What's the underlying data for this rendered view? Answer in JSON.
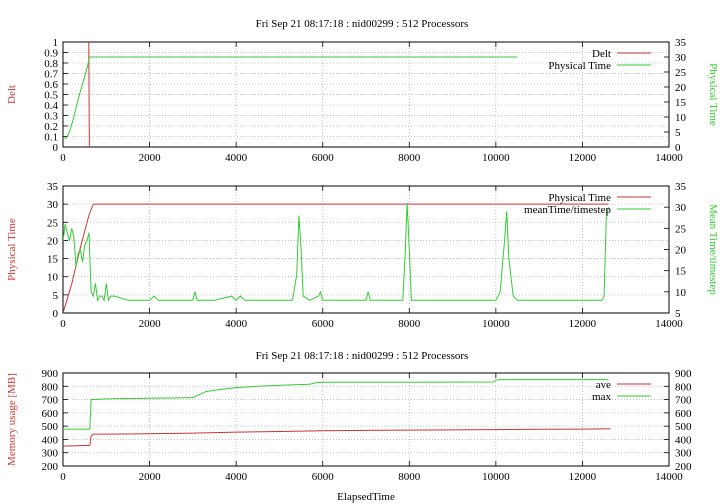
{
  "figure": {
    "title": "Fri Sep 21 08:17:18 : nid00299 : 512 Processors",
    "colors": {
      "red": "#cc3333",
      "green": "#33cc33",
      "grid": "#b8b8b8",
      "axis": "#000000"
    }
  },
  "chart_data": [
    {
      "type": "line",
      "title": "Fri Sep 21 08:17:18 : nid00299 : 512 Processors",
      "xlabel": "",
      "ylabel": "Delt",
      "y2label": "Physical Time",
      "xlim": [
        0,
        14000
      ],
      "ylim": [
        0,
        1
      ],
      "y2lim": [
        0,
        35
      ],
      "xticks": [
        0,
        2000,
        4000,
        6000,
        8000,
        10000,
        12000,
        14000
      ],
      "yticks": [
        0,
        0.1,
        0.2,
        0.3,
        0.4,
        0.5,
        0.6,
        0.7,
        0.8,
        0.9,
        1
      ],
      "y2ticks": [
        0,
        5,
        10,
        15,
        20,
        25,
        30,
        35
      ],
      "grid": true,
      "legend": "top-right",
      "series": [
        {
          "name": "Delt",
          "axis": "y",
          "color": "#cc3333",
          "x": [
            595,
            600,
            605,
            610
          ],
          "y": [
            1.0,
            0.6,
            0.2,
            0.0
          ]
        },
        {
          "name": "Physical Time",
          "axis": "y2",
          "color": "#33cc33",
          "x": [
            0,
            80,
            150,
            250,
            350,
            450,
            550,
            620,
            700,
            1000,
            2000,
            4000,
            6000,
            8000,
            10000,
            10500
          ],
          "y": [
            3,
            3,
            5,
            10,
            16,
            21,
            26,
            30,
            30,
            30,
            30,
            30,
            30,
            30,
            30,
            30
          ]
        }
      ]
    },
    {
      "type": "line",
      "title": "",
      "xlabel": "",
      "ylabel": "Physical Time",
      "y2label": "Mean Time/timestep",
      "xlim": [
        0,
        14000
      ],
      "ylim": [
        0,
        35
      ],
      "y2lim": [
        5,
        35
      ],
      "xticks": [
        0,
        2000,
        4000,
        6000,
        8000,
        10000,
        12000,
        14000
      ],
      "yticks": [
        0,
        5,
        10,
        15,
        20,
        25,
        30,
        35
      ],
      "y2ticks": [
        5,
        10,
        15,
        20,
        25,
        30,
        35
      ],
      "grid": true,
      "legend": "top-right",
      "series": [
        {
          "name": "Physical Time",
          "axis": "y",
          "color": "#cc3333",
          "x": [
            0,
            200,
            400,
            600,
            700,
            1000,
            2000,
            4000,
            6000,
            8000,
            10000,
            12000,
            12600
          ],
          "y": [
            0,
            8,
            18,
            27,
            30,
            30,
            30,
            30,
            30,
            30,
            30,
            30,
            30
          ]
        },
        {
          "name": "meanTime/timestep",
          "axis": "y2",
          "color": "#33cc33",
          "x": [
            0,
            50,
            100,
            150,
            200,
            250,
            300,
            350,
            400,
            450,
            500,
            550,
            600,
            650,
            700,
            750,
            800,
            850,
            900,
            950,
            1000,
            1050,
            1100,
            1200,
            1500,
            2000,
            2100,
            2200,
            2500,
            3000,
            3050,
            3100,
            3200,
            3500,
            3900,
            4000,
            4100,
            4200,
            4500,
            5000,
            5300,
            5400,
            5450,
            5500,
            5550,
            5700,
            5900,
            5950,
            6000,
            6500,
            7000,
            7050,
            7100,
            7500,
            7800,
            7850,
            7900,
            7950,
            8000,
            8050,
            8500,
            9000,
            9500,
            10000,
            10100,
            10200,
            10250,
            10300,
            10400,
            10500,
            11000,
            11500,
            11800,
            12000,
            12300,
            12450,
            12500,
            12550,
            12600
          ],
          "y": [
            22,
            26,
            24,
            22,
            25,
            23,
            16,
            19,
            20,
            17,
            21,
            22,
            24,
            10,
            9,
            12,
            8,
            9,
            9,
            8,
            12,
            8,
            9,
            9,
            8,
            8,
            9,
            8,
            8,
            8,
            10,
            8,
            8,
            8,
            9,
            8,
            9,
            8,
            8,
            8,
            8,
            14,
            28,
            20,
            9,
            8,
            9,
            10,
            8,
            8,
            8,
            10,
            8,
            8,
            8,
            8,
            18,
            31,
            20,
            8,
            8,
            8,
            8,
            8,
            10,
            22,
            29,
            18,
            9,
            8,
            8,
            8,
            8,
            8,
            8,
            8,
            9,
            27,
            30
          ]
        }
      ]
    },
    {
      "type": "line",
      "title": "Fri Sep 21 08:17:18 : nid00299 : 512 Processors",
      "xlabel": "ElapsedTime",
      "ylabel": "Memory usage [MB]",
      "y2label": "",
      "xlim": [
        0,
        14000
      ],
      "ylim": [
        200,
        900
      ],
      "y2lim": [
        200,
        900
      ],
      "xticks": [
        0,
        2000,
        4000,
        6000,
        8000,
        10000,
        12000,
        14000
      ],
      "yticks": [
        200,
        300,
        400,
        500,
        600,
        700,
        800,
        900
      ],
      "y2ticks": [
        200,
        300,
        400,
        500,
        600,
        700,
        800,
        900
      ],
      "grid": true,
      "legend": "top-right",
      "series": [
        {
          "name": "ave",
          "axis": "y",
          "color": "#cc3333",
          "x": [
            0,
            620,
            650,
            700,
            1000,
            2000,
            3000,
            4000,
            5000,
            6000,
            7000,
            8000,
            9000,
            10000,
            11000,
            12000,
            12650
          ],
          "y": [
            350,
            355,
            425,
            440,
            440,
            442,
            448,
            455,
            460,
            465,
            468,
            470,
            472,
            474,
            476,
            478,
            480
          ]
        },
        {
          "name": "max",
          "axis": "y",
          "color": "#33cc33",
          "x": [
            0,
            620,
            650,
            1000,
            2000,
            3000,
            3100,
            3300,
            3600,
            4000,
            4500,
            5000,
            5700,
            5800,
            6000,
            8000,
            9950,
            10000,
            10100,
            12600
          ],
          "y": [
            478,
            478,
            700,
            705,
            710,
            715,
            730,
            760,
            775,
            790,
            800,
            808,
            815,
            825,
            830,
            830,
            832,
            845,
            850,
            850
          ]
        }
      ]
    }
  ]
}
